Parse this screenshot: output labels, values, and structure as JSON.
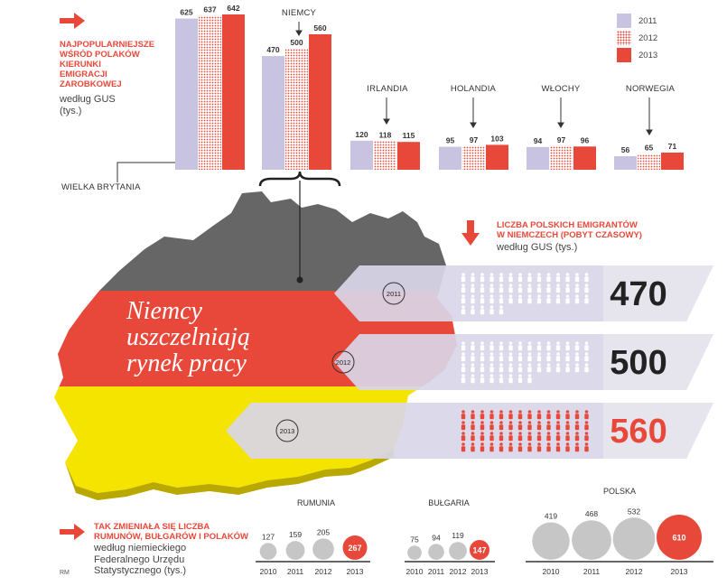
{
  "colors": {
    "c2011": "#c8c3e0",
    "c2012_dot": "#e8483a",
    "c2013": "#e8483a",
    "accent": "#e8483a",
    "gray_bubble": "#c6c6c6",
    "flag_black": "#666666",
    "flag_red": "#e8483a",
    "flag_yellow": "#f5e300"
  },
  "top_note": {
    "heading": "NAJPOPULARNIEJSZE WŚRÓD POLAKÓW KIERUNKI EMIGRACJI ZAROBKOWEJ",
    "heading_lines": [
      "NAJPOPULARNIEJSZE",
      "WŚRÓD POLAKÓW",
      "KIERUNKI",
      "EMIGRACJI",
      "ZAROBKOWEJ"
    ],
    "sub_lines": [
      "według GUS",
      "(tys.)"
    ]
  },
  "legend": [
    "2011",
    "2012",
    "2013"
  ],
  "map_title_lines": [
    "Niemcy",
    "uszczelniają",
    "rynek pracy"
  ],
  "germany_note": {
    "heading_lines": [
      "LICZBA POLSKICH EMIGRANTÓW",
      "W NIEMCZECH (POBYT CZASOWY)"
    ],
    "sub": "według GUS (tys.)"
  },
  "bottom_note": {
    "heading_lines": [
      "TAK ZMIENIAŁA SIĘ LICZBA",
      "RUMUNÓW, BUŁGARÓW I POLAKÓW"
    ],
    "sub_lines": [
      "według niemieckiego",
      "Federalnego Urzędu",
      "Statystycznego (tys.)"
    ]
  },
  "credit": "RM",
  "chart_data": [
    {
      "type": "bar",
      "categories": [
        "WIELKA BRYTANIA",
        "NIEMCY",
        "IRLANDIA",
        "HOLANDIA",
        "WŁOCHY",
        "NORWEGIA"
      ],
      "series": [
        {
          "name": "2011",
          "values": [
            625,
            470,
            120,
            95,
            94,
            56
          ]
        },
        {
          "name": "2012",
          "values": [
            637,
            500,
            118,
            97,
            97,
            65
          ]
        },
        {
          "name": "2013",
          "values": [
            642,
            560,
            115,
            103,
            96,
            71
          ]
        }
      ],
      "ylim": [
        0,
        642
      ]
    },
    {
      "type": "bar",
      "categories": [
        "2011",
        "2012",
        "2013"
      ],
      "values": [
        470,
        500,
        560
      ],
      "title": "LICZBA POLSKICH EMIGRANTÓW W NIEMCZECH (POBYT CZASOWY)"
    },
    {
      "type": "scatter",
      "title": "RUMUNIA",
      "x": [
        "2010",
        "2011",
        "2012",
        "2013"
      ],
      "values": [
        127,
        159,
        205,
        267
      ]
    },
    {
      "type": "scatter",
      "title": "BUŁGARIA",
      "x": [
        "2010",
        "2011",
        "2012",
        "2013"
      ],
      "values": [
        75,
        94,
        119,
        147
      ]
    },
    {
      "type": "scatter",
      "title": "POLSKA",
      "x": [
        "2010",
        "2011",
        "2012",
        "2013"
      ],
      "values": [
        419,
        468,
        532,
        610
      ]
    }
  ]
}
